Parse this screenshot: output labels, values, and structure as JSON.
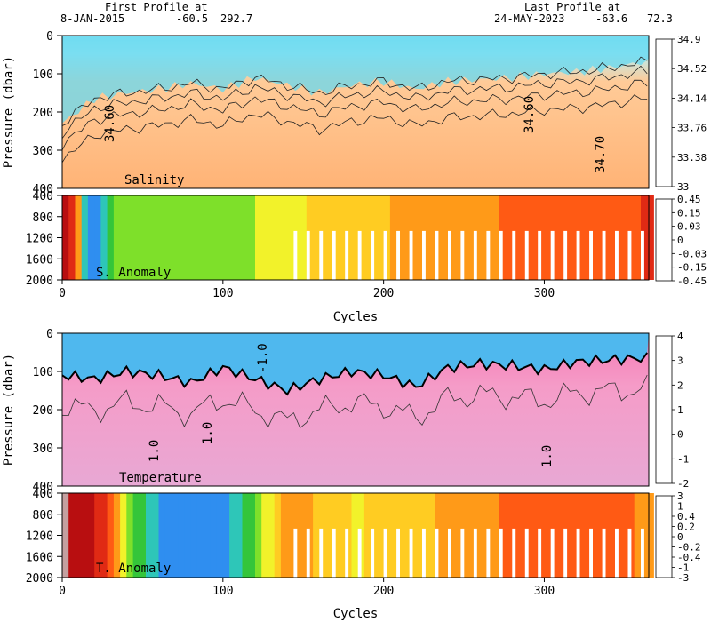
{
  "header": {
    "first_profile_label": "First Profile at",
    "first_profile_date": "8-JAN-2015",
    "first_profile_lat": "-60.5",
    "first_profile_lon": "292.7",
    "last_profile_label": "Last Profile at",
    "last_profile_date": "24-MAY-2023",
    "last_profile_lat": "-63.6",
    "last_profile_lon": "72.3"
  },
  "chart_data": [
    {
      "type": "heatmap",
      "inner_label": "Salinity",
      "ylabel": "Pressure (dbar)",
      "xlabel": "",
      "xlim": [
        0,
        365
      ],
      "ylim": [
        400,
        0
      ],
      "yticks": [
        0,
        100,
        200,
        300,
        400
      ],
      "xticks": [
        0,
        100,
        200,
        300
      ],
      "colorbar": {
        "tick_labels": [
          "33",
          "33.38",
          "33.76",
          "34.14",
          "34.52",
          "34.9"
        ],
        "colors": [
          "#1e90ff",
          "#36b0f0",
          "#46d0f0",
          "#62e6ee",
          "#8af0ee",
          "#d2ecd0",
          "#ffd8a8",
          "#ffc088",
          "#ffb070",
          "#ffa04a"
        ]
      },
      "contour_labels": [
        "34.60",
        "34.60",
        "34.70"
      ],
      "surface_value": 33.9,
      "deep_value": 34.7,
      "mixed_layer_depth_by_cycle": {
        "cycle": [
          0,
          20,
          40,
          60,
          80,
          100,
          120,
          140,
          160,
          180,
          200,
          220,
          240,
          260,
          280,
          300,
          320,
          340,
          360
        ],
        "depth": [
          230,
          165,
          150,
          140,
          125,
          140,
          110,
          130,
          150,
          130,
          120,
          140,
          120,
          115,
          110,
          100,
          95,
          85,
          70
        ]
      }
    },
    {
      "type": "heatmap",
      "inner_label": "S. Anomaly",
      "ylabel": "",
      "xlabel": "Cycles",
      "xlim": [
        0,
        365
      ],
      "ylim": [
        2000,
        400
      ],
      "yticks": [
        400,
        800,
        1200,
        1600,
        2000
      ],
      "xticks": [
        0,
        100,
        200,
        300
      ],
      "colorbar": {
        "tick_labels": [
          "-0.45",
          "-0.15",
          "-0.03",
          "0",
          "0.03",
          "0.15",
          "0.45"
        ],
        "colors": [
          "#cc44ee",
          "#7a4bd6",
          "#3d3ddb",
          "#2f8ef0",
          "#2ec6b8",
          "#34c53a",
          "#7ee02a",
          "#f2f22a",
          "#ffcc22",
          "#ff9a18",
          "#ff5a14",
          "#e02a14",
          "#b80e10",
          "#c4a0a0"
        ]
      },
      "anomaly_by_cycle": {
        "cycle": [
          0,
          15,
          30,
          60,
          100,
          140,
          180,
          220,
          260,
          300,
          340,
          365
        ],
        "value": [
          0.2,
          -0.1,
          0.0,
          -0.01,
          -0.01,
          0.01,
          0.02,
          0.03,
          0.06,
          0.08,
          0.1,
          0.12
        ]
      }
    },
    {
      "type": "heatmap",
      "inner_label": "Temperature",
      "ylabel": "Pressure (dbar)",
      "xlabel": "",
      "xlim": [
        0,
        365
      ],
      "ylim": [
        400,
        0
      ],
      "yticks": [
        0,
        100,
        200,
        300,
        400
      ],
      "xticks": [
        0,
        100,
        200,
        300
      ],
      "colorbar": {
        "tick_labels": [
          "-2",
          "-1",
          "0",
          "1",
          "2",
          "3",
          "4"
        ],
        "colors": [
          "#1e8ff0",
          "#3fb2f0",
          "#6cd0f0",
          "#a6e4f4",
          "#c8c8e8",
          "#f0a8d8",
          "#f28cc2",
          "#f26aa8",
          "#ee4a8a",
          "#e02a6a",
          "#d01452",
          "#c80a40"
        ]
      },
      "contour_labels": [
        "1.0",
        "1.0",
        "1.0",
        "-1.0"
      ],
      "surface_value": -1.0,
      "deep_value": 1.2,
      "winter_water_depth_by_cycle": {
        "cycle": [
          0,
          20,
          40,
          60,
          80,
          100,
          120,
          140,
          160,
          180,
          200,
          220,
          240,
          260,
          280,
          300,
          320,
          340,
          360
        ],
        "depth": [
          110,
          120,
          100,
          110,
          130,
          90,
          120,
          150,
          120,
          100,
          110,
          140,
          90,
          80,
          85,
          95,
          75,
          70,
          65
        ]
      }
    },
    {
      "type": "heatmap",
      "inner_label": "T. Anomaly",
      "ylabel": "",
      "xlabel": "Cycles",
      "xlim": [
        0,
        365
      ],
      "ylim": [
        2000,
        400
      ],
      "yticks": [
        400,
        800,
        1200,
        1600,
        2000
      ],
      "xticks": [
        0,
        100,
        200,
        300
      ],
      "colorbar": {
        "tick_labels": [
          "-3",
          "-1",
          "-0.4",
          "-0.2",
          "0",
          "0.2",
          "0.4",
          "1",
          "3"
        ],
        "colors": [
          "#cc44ee",
          "#7a4bd6",
          "#3d3ddb",
          "#2f8ef0",
          "#2ec6b8",
          "#34c53a",
          "#7ee02a",
          "#f2f22a",
          "#ffcc22",
          "#ff9a18",
          "#ff5a14",
          "#e02a14",
          "#b80e10",
          "#c4a0a0"
        ]
      },
      "anomaly_by_cycle": {
        "cycle": [
          0,
          10,
          25,
          40,
          60,
          100,
          140,
          180,
          220,
          260,
          300,
          340,
          365
        ],
        "value": [
          2.0,
          1.5,
          0.6,
          -0.1,
          -0.4,
          -0.4,
          0.3,
          0.1,
          0.2,
          0.3,
          0.5,
          0.4,
          0.3
        ]
      }
    }
  ]
}
